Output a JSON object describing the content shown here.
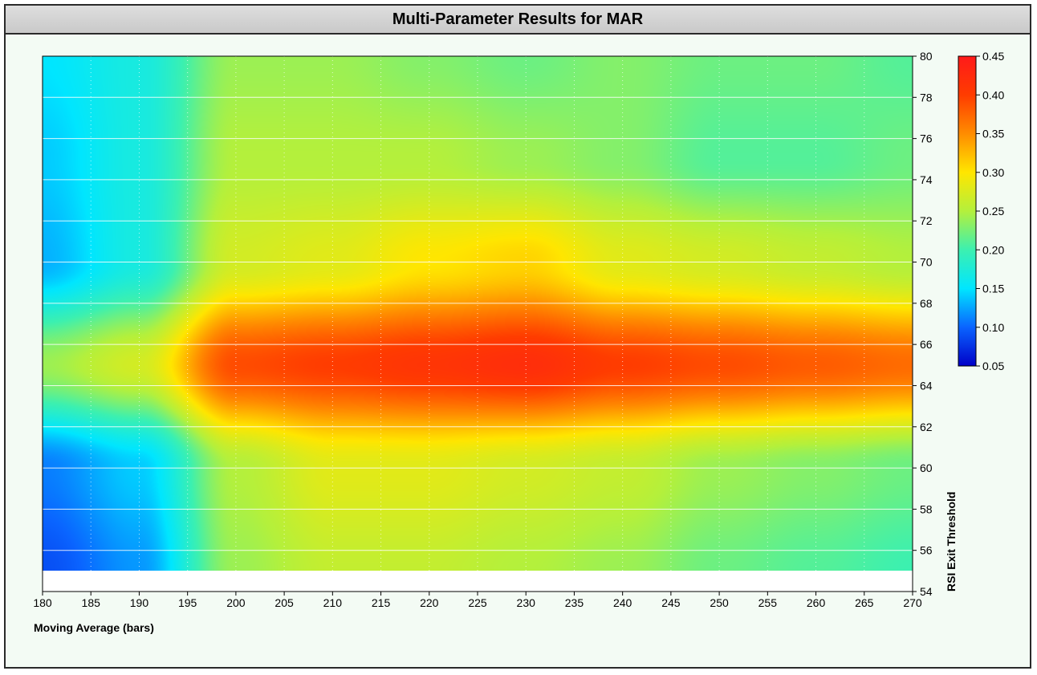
{
  "window": {
    "title": "Multi-Parameter Results for MAR"
  },
  "chart_data": {
    "type": "heatmap",
    "title": "Multi-Parameter Results for MAR",
    "xlabel": "Moving Average (bars)",
    "ylabel": "RSI Exit Threshold",
    "xlim": [
      180,
      270
    ],
    "ylim": [
      54,
      80
    ],
    "x_ticks": [
      180,
      185,
      190,
      195,
      200,
      205,
      210,
      215,
      220,
      225,
      230,
      235,
      240,
      245,
      250,
      255,
      260,
      265,
      270
    ],
    "y_ticks": [
      54,
      56,
      58,
      60,
      62,
      64,
      66,
      68,
      70,
      72,
      74,
      76,
      78,
      80
    ],
    "x": [
      180,
      190,
      200,
      210,
      220,
      230,
      240,
      250,
      260,
      270
    ],
    "y": [
      55,
      60,
      65,
      70,
      75,
      80
    ],
    "z": [
      [
        0.09,
        0.12,
        0.24,
        0.26,
        0.26,
        0.25,
        0.24,
        0.22,
        0.21,
        0.2
      ],
      [
        0.11,
        0.14,
        0.25,
        0.28,
        0.28,
        0.27,
        0.26,
        0.24,
        0.23,
        0.22
      ],
      [
        0.24,
        0.27,
        0.39,
        0.4,
        0.41,
        0.42,
        0.4,
        0.39,
        0.38,
        0.37
      ],
      [
        0.13,
        0.17,
        0.27,
        0.28,
        0.3,
        0.31,
        0.28,
        0.27,
        0.26,
        0.25
      ],
      [
        0.14,
        0.17,
        0.25,
        0.25,
        0.25,
        0.24,
        0.23,
        0.21,
        0.21,
        0.22
      ],
      [
        0.15,
        0.17,
        0.24,
        0.24,
        0.23,
        0.22,
        0.23,
        0.22,
        0.22,
        0.21
      ]
    ],
    "colorbar": {
      "min": 0.05,
      "max": 0.45,
      "ticks": [
        0.05,
        0.1,
        0.15,
        0.2,
        0.25,
        0.3,
        0.35,
        0.4,
        0.45
      ],
      "tick_labels": [
        "0.05",
        "0.10",
        "0.15",
        "0.20",
        "0.25",
        "0.30",
        "0.35",
        "0.40",
        "0.45"
      ],
      "colors": [
        "#0000c8",
        "#0a64ff",
        "#00e6ff",
        "#3cf0b0",
        "#b4f03c",
        "#ffe600",
        "#ff8c00",
        "#ff3c00",
        "#ff1a1a"
      ]
    },
    "grid": true,
    "plot_background": "#ffffff"
  }
}
